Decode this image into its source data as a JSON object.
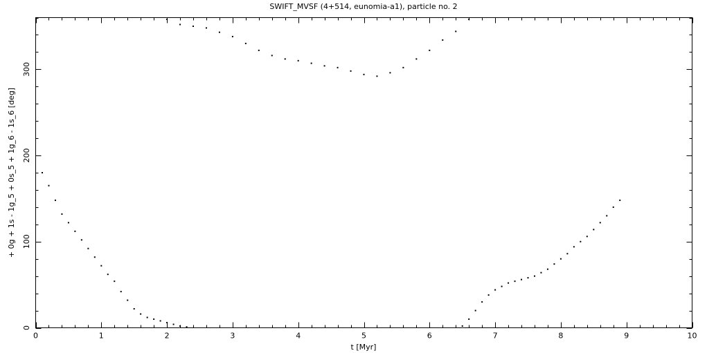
{
  "chart_data": {
    "type": "scatter",
    "title": "SWIFT_MVSF (4+514, eunomia-a1), particle no. 2",
    "xlabel": "t [Myr]",
    "ylabel": "+ 0g + 1s - 1g_5 + 0s_5 + 1g_6 - 1s_6 [deg]",
    "xlim": [
      0,
      10
    ],
    "ylim": [
      0,
      360
    ],
    "x_ticks": [
      "0",
      "1",
      "2",
      "3",
      "4",
      "5",
      "6",
      "7",
      "8",
      "9",
      "10"
    ],
    "y_ticks": [
      "0",
      "100",
      "200",
      "300"
    ],
    "grid": false,
    "colors": {
      "points": "#000000",
      "axes": "#000000",
      "background": "#ffffff"
    },
    "series": [
      {
        "points": [
          [
            0.1,
            180
          ],
          [
            0.2,
            165
          ],
          [
            0.3,
            148
          ],
          [
            0.4,
            132
          ],
          [
            0.5,
            122
          ],
          [
            0.6,
            112
          ],
          [
            0.7,
            102
          ],
          [
            0.8,
            92
          ],
          [
            0.9,
            82
          ],
          [
            1.0,
            72
          ],
          [
            1.1,
            62
          ],
          [
            1.2,
            54
          ],
          [
            1.3,
            42
          ],
          [
            1.4,
            32
          ],
          [
            1.5,
            22
          ],
          [
            1.6,
            16
          ],
          [
            1.7,
            12
          ],
          [
            1.8,
            10
          ],
          [
            1.9,
            8
          ],
          [
            2.0,
            6
          ],
          [
            2.1,
            4
          ],
          [
            2.2,
            2
          ],
          [
            2.3,
            1
          ],
          [
            2.0,
            358
          ],
          [
            2.2,
            352
          ],
          [
            2.4,
            350
          ],
          [
            2.6,
            348
          ],
          [
            2.8,
            343
          ],
          [
            3.0,
            338
          ],
          [
            3.2,
            330
          ],
          [
            3.4,
            322
          ],
          [
            3.6,
            316
          ],
          [
            3.8,
            312
          ],
          [
            4.0,
            310
          ],
          [
            4.2,
            307
          ],
          [
            4.4,
            304
          ],
          [
            4.6,
            302
          ],
          [
            4.8,
            298
          ],
          [
            5.0,
            294
          ],
          [
            5.2,
            292
          ],
          [
            5.4,
            296
          ],
          [
            5.6,
            302
          ],
          [
            5.8,
            312
          ],
          [
            6.0,
            322
          ],
          [
            6.2,
            334
          ],
          [
            6.4,
            344
          ],
          [
            6.6,
            358
          ],
          [
            6.5,
            2
          ],
          [
            6.6,
            10
          ],
          [
            6.7,
            20
          ],
          [
            6.8,
            30
          ],
          [
            6.9,
            38
          ],
          [
            7.0,
            44
          ],
          [
            7.1,
            48
          ],
          [
            7.2,
            52
          ],
          [
            7.3,
            54
          ],
          [
            7.4,
            56
          ],
          [
            7.5,
            58
          ],
          [
            7.6,
            60
          ],
          [
            7.7,
            64
          ],
          [
            7.8,
            68
          ],
          [
            7.9,
            74
          ],
          [
            8.0,
            80
          ],
          [
            8.1,
            86
          ],
          [
            8.2,
            94
          ],
          [
            8.3,
            100
          ],
          [
            8.4,
            106
          ],
          [
            8.5,
            114
          ],
          [
            8.6,
            122
          ],
          [
            8.7,
            130
          ],
          [
            8.8,
            140
          ],
          [
            8.9,
            148
          ]
        ]
      }
    ]
  }
}
